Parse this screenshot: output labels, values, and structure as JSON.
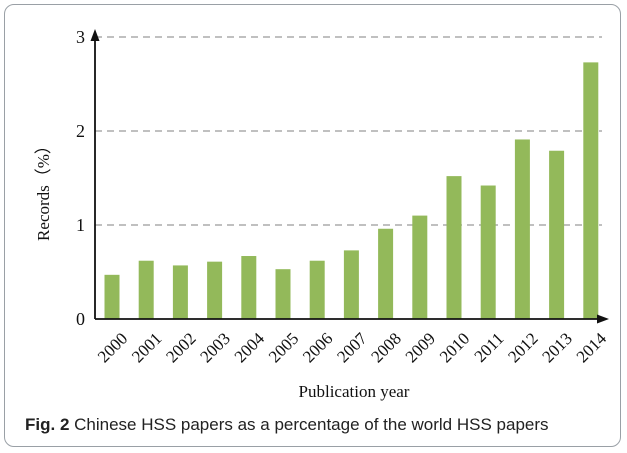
{
  "figure": {
    "caption_label": "Fig. 2",
    "caption_text": " Chinese HSS papers as a percentage of the world HSS papers"
  },
  "chart_data": {
    "type": "bar",
    "categories": [
      "2000",
      "2001",
      "2002",
      "2003",
      "2004",
      "2005",
      "2006",
      "2007",
      "2008",
      "2009",
      "2010",
      "2011",
      "2012",
      "2013",
      "2014"
    ],
    "values": [
      0.47,
      0.62,
      0.57,
      0.61,
      0.67,
      0.53,
      0.62,
      0.73,
      0.96,
      1.1,
      1.52,
      1.42,
      1.91,
      1.79,
      2.73
    ],
    "title": "",
    "xlabel": "Publication year",
    "ylabel": "Records（%）",
    "ylim": [
      0,
      3
    ],
    "yticks": [
      "0",
      "1",
      "2",
      "3"
    ],
    "grid": "dashed horizontal",
    "bar_color": "#93b95a",
    "grid_color": "#9a9a9a",
    "axis_color": "#111111"
  }
}
